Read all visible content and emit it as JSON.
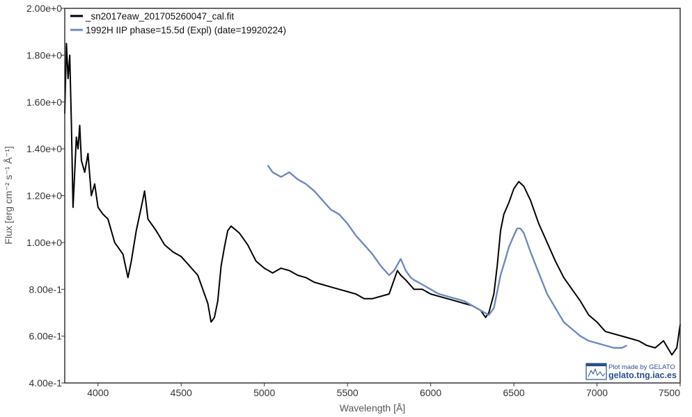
{
  "chart_data": {
    "type": "line",
    "title": "",
    "xlabel": "Wavelength [Å]",
    "ylabel": "Flux [erg cm⁻² s⁻¹ Å⁻¹]",
    "xlim": [
      3800,
      7500
    ],
    "ylim": [
      0.4,
      2.0
    ],
    "xticks": [
      4000,
      4500,
      5000,
      5500,
      6000,
      6500,
      7000,
      7500
    ],
    "yticks": [
      0.4,
      0.6,
      0.8,
      1.0,
      1.2,
      1.4,
      1.6,
      1.8,
      2.0
    ],
    "ytick_labels": [
      "4.00e-1",
      "6.00e-1",
      "8.00e-1",
      "1.00e+0",
      "1.20e+0",
      "1.40e+0",
      "1.60e+0",
      "1.80e+0",
      "2.00e+0"
    ],
    "grid": false,
    "legend_position": "top-left",
    "series": [
      {
        "name": "_sn2017eaw_201705260047_cal.fit",
        "color": "#000000",
        "x": [
          3800,
          3810,
          3820,
          3830,
          3840,
          3850,
          3860,
          3870,
          3880,
          3890,
          3900,
          3920,
          3940,
          3960,
          3980,
          4000,
          4030,
          4060,
          4100,
          4150,
          4180,
          4200,
          4230,
          4260,
          4280,
          4300,
          4350,
          4400,
          4450,
          4500,
          4550,
          4600,
          4630,
          4660,
          4680,
          4700,
          4720,
          4740,
          4760,
          4780,
          4800,
          4850,
          4900,
          4950,
          5000,
          5050,
          5100,
          5150,
          5200,
          5250,
          5300,
          5350,
          5400,
          5450,
          5500,
          5550,
          5600,
          5650,
          5700,
          5750,
          5800,
          5820,
          5850,
          5900,
          5950,
          6000,
          6050,
          6100,
          6150,
          6200,
          6250,
          6300,
          6330,
          6350,
          6380,
          6400,
          6420,
          6440,
          6470,
          6500,
          6530,
          6560,
          6600,
          6650,
          6700,
          6750,
          6800,
          6850,
          6900,
          6950,
          7000,
          7050,
          7100,
          7150,
          7200,
          7250,
          7300,
          7350,
          7400,
          7450,
          7480,
          7500
        ],
        "values": [
          1.55,
          1.85,
          1.7,
          1.8,
          1.5,
          1.15,
          1.3,
          1.45,
          1.4,
          1.5,
          1.35,
          1.3,
          1.38,
          1.2,
          1.25,
          1.15,
          1.12,
          1.1,
          1.0,
          0.95,
          0.85,
          0.92,
          1.05,
          1.15,
          1.22,
          1.1,
          1.05,
          0.99,
          0.96,
          0.94,
          0.9,
          0.86,
          0.8,
          0.74,
          0.66,
          0.68,
          0.75,
          0.9,
          0.98,
          1.05,
          1.07,
          1.04,
          0.99,
          0.92,
          0.89,
          0.87,
          0.89,
          0.88,
          0.86,
          0.85,
          0.83,
          0.82,
          0.81,
          0.8,
          0.79,
          0.78,
          0.76,
          0.76,
          0.77,
          0.78,
          0.88,
          0.86,
          0.84,
          0.8,
          0.8,
          0.78,
          0.77,
          0.76,
          0.75,
          0.74,
          0.73,
          0.71,
          0.68,
          0.7,
          0.78,
          0.9,
          1.05,
          1.12,
          1.17,
          1.23,
          1.26,
          1.24,
          1.18,
          1.08,
          1.0,
          0.92,
          0.85,
          0.8,
          0.75,
          0.69,
          0.66,
          0.62,
          0.61,
          0.6,
          0.59,
          0.58,
          0.56,
          0.55,
          0.58,
          0.52,
          0.55,
          0.65
        ]
      },
      {
        "name": "1992H  IIP  phase=15.5d (Expl)  (date=19920224)",
        "color": "#6f89be",
        "x": [
          5020,
          5050,
          5100,
          5150,
          5200,
          5250,
          5300,
          5350,
          5400,
          5450,
          5500,
          5550,
          5600,
          5650,
          5700,
          5750,
          5780,
          5820,
          5850,
          5880,
          5900,
          5950,
          6000,
          6050,
          6100,
          6150,
          6200,
          6250,
          6300,
          6350,
          6380,
          6400,
          6420,
          6450,
          6470,
          6500,
          6520,
          6540,
          6560,
          6580,
          6600,
          6650,
          6700,
          6750,
          6800,
          6850,
          6900,
          6950,
          7000,
          7050,
          7100,
          7150,
          7180
        ],
        "values": [
          1.33,
          1.3,
          1.28,
          1.3,
          1.27,
          1.25,
          1.22,
          1.18,
          1.14,
          1.12,
          1.08,
          1.03,
          0.99,
          0.95,
          0.9,
          0.86,
          0.88,
          0.93,
          0.88,
          0.85,
          0.84,
          0.82,
          0.8,
          0.78,
          0.77,
          0.76,
          0.75,
          0.73,
          0.71,
          0.69,
          0.72,
          0.79,
          0.86,
          0.93,
          0.98,
          1.03,
          1.06,
          1.06,
          1.04,
          1.0,
          0.96,
          0.87,
          0.78,
          0.72,
          0.66,
          0.63,
          0.6,
          0.58,
          0.57,
          0.56,
          0.55,
          0.55,
          0.56
        ]
      }
    ]
  },
  "badge": {
    "line1": "Plot made by GELATO",
    "line2": "gelato.tng.iac.es"
  }
}
